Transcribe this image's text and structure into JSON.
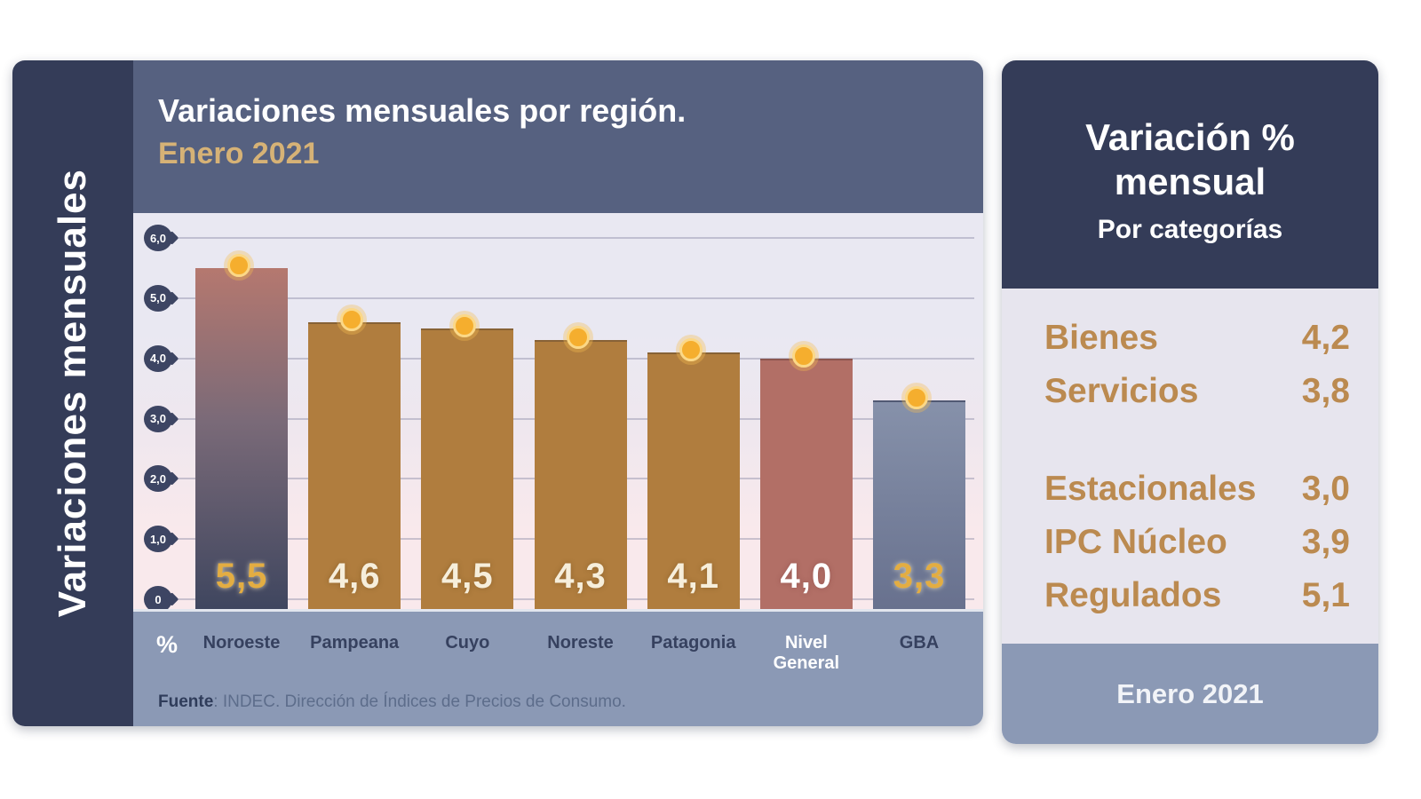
{
  "left_banner": {
    "label": "Variaciones mensuales"
  },
  "main_chart": {
    "title": "Variaciones mensuales por región.",
    "subtitle": "Enero 2021",
    "unit_label": "%",
    "source": {
      "prefix": "Fuente",
      "text": ": INDEC. Dirección de Índices de Precios de Consumo."
    }
  },
  "chart_data": {
    "type": "bar",
    "title": "Variaciones mensuales por región. Enero 2021",
    "categories": [
      "Noroeste",
      "Pampeana",
      "Cuyo",
      "Noreste",
      "Patagonia",
      "Nivel General",
      "GBA"
    ],
    "values": [
      5.5,
      4.6,
      4.5,
      4.3,
      4.1,
      4.0,
      3.3
    ],
    "value_labels": [
      "5,5",
      "4,6",
      "4,5",
      "4,3",
      "4,1",
      "4,0",
      "3,3"
    ],
    "bar_styles": [
      "gradient-mauve-navy",
      "tan",
      "tan",
      "tan",
      "tan",
      "mauve",
      "gradient-blue"
    ],
    "value_label_styles": [
      "gold",
      "cream",
      "cream",
      "cream",
      "cream",
      "white",
      "gold"
    ],
    "category_label_styles": [
      "navy",
      "navy",
      "navy",
      "navy",
      "navy",
      "white",
      "navy"
    ],
    "point_markers": true,
    "xlabel": "",
    "ylabel": "%",
    "ylim": [
      0,
      6
    ],
    "yticks": [
      {
        "label": "6,0",
        "value": 6
      },
      {
        "label": "5,0",
        "value": 5
      },
      {
        "label": "4,0",
        "value": 4
      },
      {
        "label": "3,0",
        "value": 3
      },
      {
        "label": "2,0",
        "value": 2
      },
      {
        "label": "1,0",
        "value": 1
      },
      {
        "label": "0",
        "value": 0
      }
    ],
    "grid": true,
    "legend": false
  },
  "side_panel": {
    "title_line1": "Variación %",
    "title_line2": "mensual",
    "subtitle": "Por categorías",
    "rows": [
      {
        "label": "Bienes",
        "value": "4,2"
      },
      {
        "label": "Servicios",
        "value": "3,8"
      },
      {
        "label": "Estacionales",
        "value": "3,0"
      },
      {
        "label": "IPC Núcleo",
        "value": "3,9"
      },
      {
        "label": "Regulados",
        "value": "5,1"
      }
    ],
    "footer": "Enero 2021"
  },
  "colors": {
    "navy": "#343c58",
    "slate": "#566180",
    "footer_blue": "#8b99b5",
    "lavender": "#e7e5ee",
    "plot_top": "#e9e8f2",
    "plot_mid": "#efe7ee",
    "plot_bottom": "#f9e9ec",
    "bar_tan": "#b07d3e",
    "bar_mauve": "#b26f66",
    "mauve_top": "#b5786f",
    "navy_bottom": "#3f465f",
    "blue_top": "#8691aa",
    "blue_bottom": "#68718e",
    "dot_gold": "#f5ae2e",
    "dot_ring": "#fbd887",
    "gold_text": "#e3ad42",
    "cream_text": "#f6eedb",
    "title_gold": "#d6b276",
    "cat_gold": "#bb8a50",
    "grid": "#8f8da8",
    "tick_navy": "#3d4563",
    "label_navy": "#36415f",
    "source_dark": "#2f3c5a",
    "source_gray": "#5d6d8b"
  }
}
